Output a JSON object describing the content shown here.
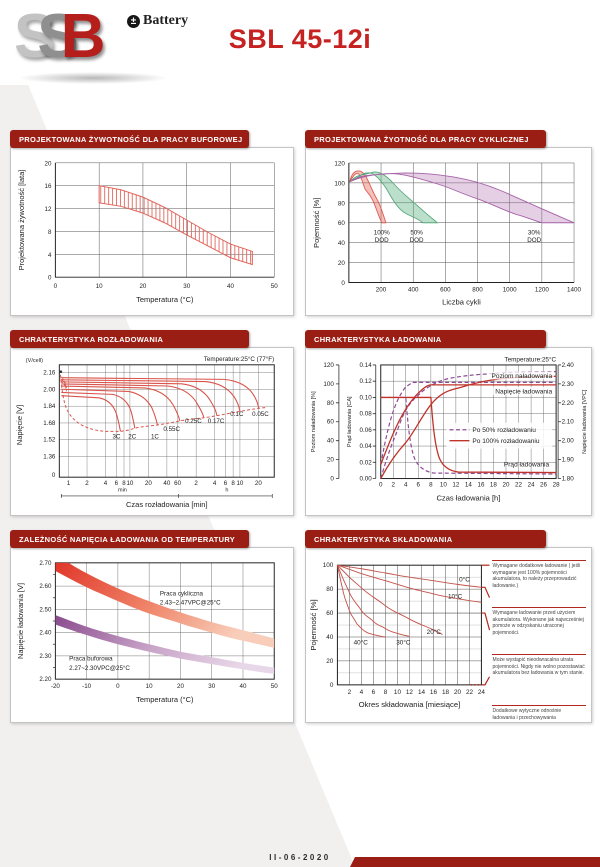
{
  "header": {
    "logo_s1": "S",
    "logo_s2": "S",
    "logo_s3": "B",
    "brand_icon": "±",
    "brand": "Battery",
    "title": "SBL 45-12i"
  },
  "footer": {
    "date_code": "II-06-2020"
  },
  "colors": {
    "header_bar": "#9b1e15",
    "accent_red": "#c62222",
    "curve_red": "#d9544a",
    "curve_purple": "#8e4a97"
  },
  "chart_data": [
    {
      "id": "design-life-float",
      "type": "area",
      "title": "PROJEKTOWANA ŻYWOTNOŚĆ DLA PRACY BUFOROWEJ",
      "xlabel": "Temperatura (°C)",
      "ylabel": "Projektowana żywotność [lata]",
      "xlim": [
        0,
        50
      ],
      "ylim": [
        0,
        20
      ],
      "grid": true,
      "xticks": [
        "0",
        "10",
        "20",
        "30",
        "40",
        "50"
      ],
      "yticks": [
        "20",
        "16",
        "12",
        "8",
        "4",
        "0"
      ],
      "band": {
        "style": "hatched",
        "color": "#e0645a",
        "x": [
          10,
          15,
          20,
          25,
          30,
          35,
          40,
          45
        ],
        "upper": [
          16,
          15.3,
          14,
          12.2,
          10,
          7.8,
          5.8,
          4.5
        ],
        "lower": [
          13,
          12.4,
          11.2,
          9.5,
          7.4,
          5.4,
          3.4,
          2.2
        ]
      }
    },
    {
      "id": "design-life-cyclic",
      "type": "area",
      "title": "PROJEKTOWANA ŻYOTNOŚĆ DLA PRACY CYKLICZNEJ",
      "xlabel": "Liczba cykli",
      "ylabel": "Pojemność [%]",
      "xlim": [
        0,
        1400
      ],
      "ylim": [
        0,
        120
      ],
      "grid": true,
      "xticks": [
        "200",
        "400",
        "600",
        "800",
        "1000",
        "1200",
        "1400"
      ],
      "yticks": [
        "120",
        "100",
        "80",
        "60",
        "40",
        "20",
        "0"
      ],
      "series": [
        {
          "name": "100%",
          "name2": "DOD",
          "color": "#dd5b4f",
          "x": [
            0,
            30,
            60,
            120,
            180,
            230
          ],
          "upper": [
            101,
            111,
            112,
            102,
            82,
            60
          ],
          "lower": [
            101,
            107,
            109,
            94,
            70,
            60
          ]
        },
        {
          "name": "50%",
          "name2": "DOD",
          "color": "#57a87b",
          "x": [
            0,
            80,
            160,
            280,
            420,
            550
          ],
          "upper": [
            101,
            108,
            111,
            99,
            78,
            60
          ],
          "lower": [
            101,
            105,
            110,
            90,
            67,
            60
          ]
        },
        {
          "name": "30%",
          "name2": "DOD",
          "color": "#a763a7",
          "x": [
            0,
            150,
            350,
            650,
            950,
            1200,
            1400
          ],
          "upper": [
            101,
            108,
            110,
            106,
            92,
            74,
            60
          ],
          "lower": [
            101,
            107,
            109,
            99,
            83,
            60,
            60
          ]
        }
      ]
    },
    {
      "id": "discharge",
      "type": "line",
      "title": "CHRAKTERYSTYKA ROZŁADOWANIA",
      "note": "Temperature:25°C (77°F)",
      "xlabel": "Czas rozładowania [min]",
      "ylabel": "Napięcie [V]",
      "yunit": "(V/cell)",
      "xscale": "log",
      "xunit_min": "min",
      "xunit_h": "h",
      "yticks": [
        "2.16",
        "2.00",
        "1.84",
        "1.68",
        "1.52",
        "1.36",
        "0"
      ],
      "xticks_min": [
        "1",
        "2",
        "4",
        "6",
        "8",
        "10",
        "20",
        "40",
        "60"
      ],
      "xticks_h": [
        "2",
        "4",
        "6",
        "8",
        "10",
        "20"
      ],
      "series": [
        {
          "name": "3C",
          "plateau_v": 1.95,
          "end_min": 7,
          "end_v": 1.6
        },
        {
          "name": "2C",
          "plateau_v": 1.98,
          "end_min": 12,
          "end_v": 1.63
        },
        {
          "name": "1C",
          "plateau_v": 2.01,
          "end_min": 28,
          "end_v": 1.66
        },
        {
          "name": "0.55C",
          "plateau_v": 2.04,
          "end_min": 65,
          "end_v": 1.7
        },
        {
          "name": "0.25C",
          "plateau_v": 2.06,
          "end_min": 160,
          "end_v": 1.73
        },
        {
          "name": "0.17C",
          "plateau_v": 2.08,
          "end_min": 260,
          "end_v": 1.75
        },
        {
          "name": "0.1C",
          "plateau_v": 2.1,
          "end_min": 620,
          "end_v": 1.79
        },
        {
          "name": "0.05C",
          "plateau_v": 2.12,
          "end_min": 1250,
          "end_v": 1.82
        }
      ]
    },
    {
      "id": "charge",
      "type": "line",
      "title": "CHRAKTERYSTYKA ŁADOWANIA",
      "note": "Temperature:25°C",
      "xlabel": "Czas ładowania [h]",
      "xticks": [
        "0",
        "2",
        "4",
        "6",
        "8",
        "10",
        "12",
        "14",
        "16",
        "18",
        "20",
        "22",
        "24",
        "26",
        "28"
      ],
      "axis_pct": {
        "label": "Poziom naładowania [%]",
        "ticks": [
          "120",
          "100",
          "80",
          "60",
          "40",
          "20",
          "0"
        ]
      },
      "axis_ca": {
        "label": "Prąd ładowania [CA]",
        "ticks": [
          "0.14",
          "0.12",
          "0.10",
          "0.08",
          "0.06",
          "0.04",
          "0.02",
          "0.00"
        ]
      },
      "axis_vpc": {
        "label": "Napięcie ładowania [VPC]",
        "ticks": [
          "2.40",
          "2.30",
          "2.20",
          "2.10",
          "2.00",
          "1.90",
          "1.80"
        ]
      },
      "legend": [
        {
          "label": "Po 50% rozładowaniu",
          "style": "dashed",
          "color": "#8e4a97"
        },
        {
          "label": "Po 100% rozładowaniu",
          "style": "solid",
          "color": "#c03329"
        }
      ],
      "annotations": {
        "level": "Poziom naładowania",
        "voltage": "Napięcie ładowania",
        "current": "Prąd ładowania"
      },
      "series": [
        {
          "name": "Prąd ładowania po 100% rozładowaniu",
          "x": [
            0,
            8,
            10,
            12,
            16,
            28
          ],
          "y_ca": [
            0.1,
            0.1,
            0.03,
            0.008,
            0.006,
            0.006
          ]
        },
        {
          "name": "Prąd ładowania po 50% rozładowaniu",
          "x": [
            0,
            4,
            6,
            8,
            12,
            28
          ],
          "y_ca": [
            0.1,
            0.1,
            0.025,
            0.008,
            0.005,
            0.005
          ]
        },
        {
          "name": "Napięcie ładowania po 100% rozładowaniu",
          "x": [
            0,
            4,
            8,
            10,
            28
          ],
          "y_vpc": [
            1.87,
            2.1,
            2.28,
            2.3,
            2.3
          ]
        },
        {
          "name": "Napięcie ładowania po 50% rozładowaniu",
          "x": [
            0,
            2,
            4,
            6,
            28
          ],
          "y_vpc": [
            1.87,
            2.15,
            2.28,
            2.3,
            2.3
          ]
        },
        {
          "name": "Poziom naładowania po 100% rozładowaniu",
          "x": [
            0,
            4,
            8,
            12,
            16,
            20,
            28
          ],
          "y_pct": [
            0,
            38,
            78,
            95,
            102,
            106,
            108
          ]
        },
        {
          "name": "Poziom naładowania po 50% rozładowaniu",
          "x": [
            0,
            2,
            4,
            8,
            12,
            16,
            20,
            28
          ],
          "y_pct": [
            0,
            40,
            72,
            98,
            107,
            110,
            112,
            113
          ]
        }
      ]
    },
    {
      "id": "charge-voltage-vs-temp",
      "type": "area",
      "title": "ZALEŻNOŚĆ NAPIĘCIA ŁADOWANIA OD TEMPERATURY",
      "xlabel": "Temperatura (°C)",
      "ylabel": "Napięcie ładowania [V]",
      "xticks": [
        "-20",
        "-10",
        "0",
        "10",
        "20",
        "30",
        "40",
        "50"
      ],
      "yticks": [
        "2.70",
        "2.60",
        "2.50",
        "2.40",
        "2.30",
        "2.20"
      ],
      "bands": [
        {
          "name": "Praca cykliczna",
          "range_label": "2.43~2.47VPC@25°C",
          "color": "#e03226",
          "x": [
            -20,
            -10,
            0,
            10,
            20,
            30,
            40,
            50
          ],
          "upper": [
            2.735,
            2.655,
            2.59,
            2.535,
            2.487,
            2.445,
            2.41,
            2.375
          ],
          "lower": [
            2.665,
            2.595,
            2.535,
            2.482,
            2.44,
            2.4,
            2.365,
            2.335
          ]
        },
        {
          "name": "Praca buforowa",
          "range_label": "2.27~2.30VPC@25°C",
          "color": "#8a4b8d",
          "x": [
            -20,
            -10,
            0,
            10,
            20,
            30,
            40,
            50
          ],
          "upper": [
            2.475,
            2.425,
            2.385,
            2.35,
            2.318,
            2.295,
            2.27,
            2.25
          ],
          "lower": [
            2.435,
            2.39,
            2.35,
            2.318,
            2.288,
            2.265,
            2.242,
            2.222
          ]
        }
      ]
    },
    {
      "id": "storage",
      "type": "line",
      "title": "CHRAKTERYSTYKA SKŁADOWANIA",
      "xlabel": "Okres składowania [miesiące]",
      "ylabel": "Pojemność [%]",
      "xticks": [
        "2",
        "4",
        "6",
        "8",
        "10",
        "12",
        "14",
        "16",
        "18",
        "20",
        "22",
        "24"
      ],
      "yticks": [
        "100",
        "80",
        "60",
        "40",
        "20",
        "0"
      ],
      "series": [
        {
          "name": "0°C",
          "x": [
            0,
            4,
            8,
            12,
            16,
            20,
            24
          ],
          "y": [
            100,
            97,
            93.5,
            90,
            87,
            84,
            81.5
          ]
        },
        {
          "name": "10°C",
          "x": [
            0,
            4,
            8,
            12,
            16,
            20,
            24
          ],
          "y": [
            100,
            93,
            87,
            81,
            76,
            72,
            69
          ]
        },
        {
          "name": "20°C",
          "x": [
            0,
            2,
            4,
            8,
            12,
            16,
            17.5
          ],
          "y": [
            100,
            90,
            81,
            66,
            55,
            46,
            42
          ]
        },
        {
          "name": "30°C",
          "x": [
            0,
            1,
            2,
            4,
            6,
            8,
            10,
            12
          ],
          "y": [
            100,
            88,
            77,
            62,
            53,
            47,
            43,
            40.5
          ]
        },
        {
          "name": "40°C",
          "x": [
            0,
            0.5,
            1,
            2,
            3,
            4,
            6,
            8
          ],
          "y": [
            100,
            88,
            77,
            62,
            53,
            47,
            42,
            40
          ]
        }
      ],
      "notes": [
        "Wymagane dodatkowe ładowanie ( jeśli wymagane jest 100% pojemności akumulatora, to należy przeprowadzić ładowanie.)",
        "Wymagane ładowanie przed użyciem akumulatora. Wykonane jak najwcześniej pomoże w odzyskaniu utraconej pojemności.",
        "Może wystąpić nieodwracalna utrata pojemności. Nigdy nie wolno pozostawiać akumulatora bez ładowania w tym stanie.",
        "Dodatkowe wytyczne odnośnie ładowania i przechowywania"
      ]
    }
  ]
}
